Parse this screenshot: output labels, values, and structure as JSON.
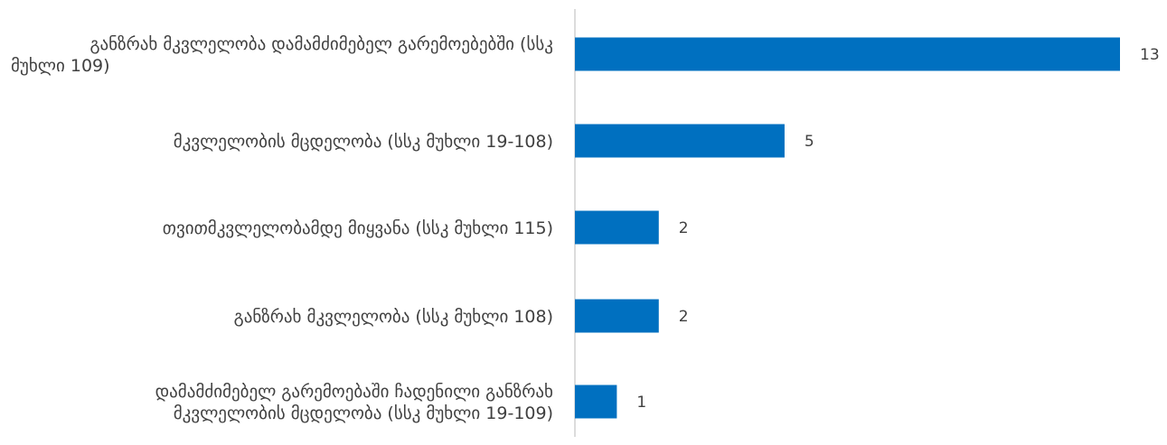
{
  "chart_data": {
    "type": "bar",
    "orientation": "horizontal",
    "title": "",
    "xlabel": "",
    "ylabel": "",
    "xlim": [
      0,
      13
    ],
    "grid": false,
    "legend": "none",
    "bar_color": "#0070C0",
    "axis_color": "#d0d0d0",
    "label_color": "#404040",
    "categories": [
      {
        "lines": [
          "განზრახ მკვლელობა დამამძიმებელ გარემოებებში (სსკ",
          "მუხლი 109)"
        ],
        "value": 13
      },
      {
        "lines": [
          "მკვლელობის მცდელობა (სსკ მუხლი 19-108)"
        ],
        "value": 5
      },
      {
        "lines": [
          "თვითმკვლელობამდე მიყვანა (სსკ მუხლი 115)"
        ],
        "value": 2
      },
      {
        "lines": [
          "განზრახ მკვლელობა (სსკ მუხლი 108)"
        ],
        "value": 2
      },
      {
        "lines": [
          "დამამძიმებელ გარემოებაში ჩადენილი განზრახ",
          "მკვლელობის მცდელობა (სსკ მუხლი 19-109)"
        ],
        "value": 1
      }
    ]
  }
}
